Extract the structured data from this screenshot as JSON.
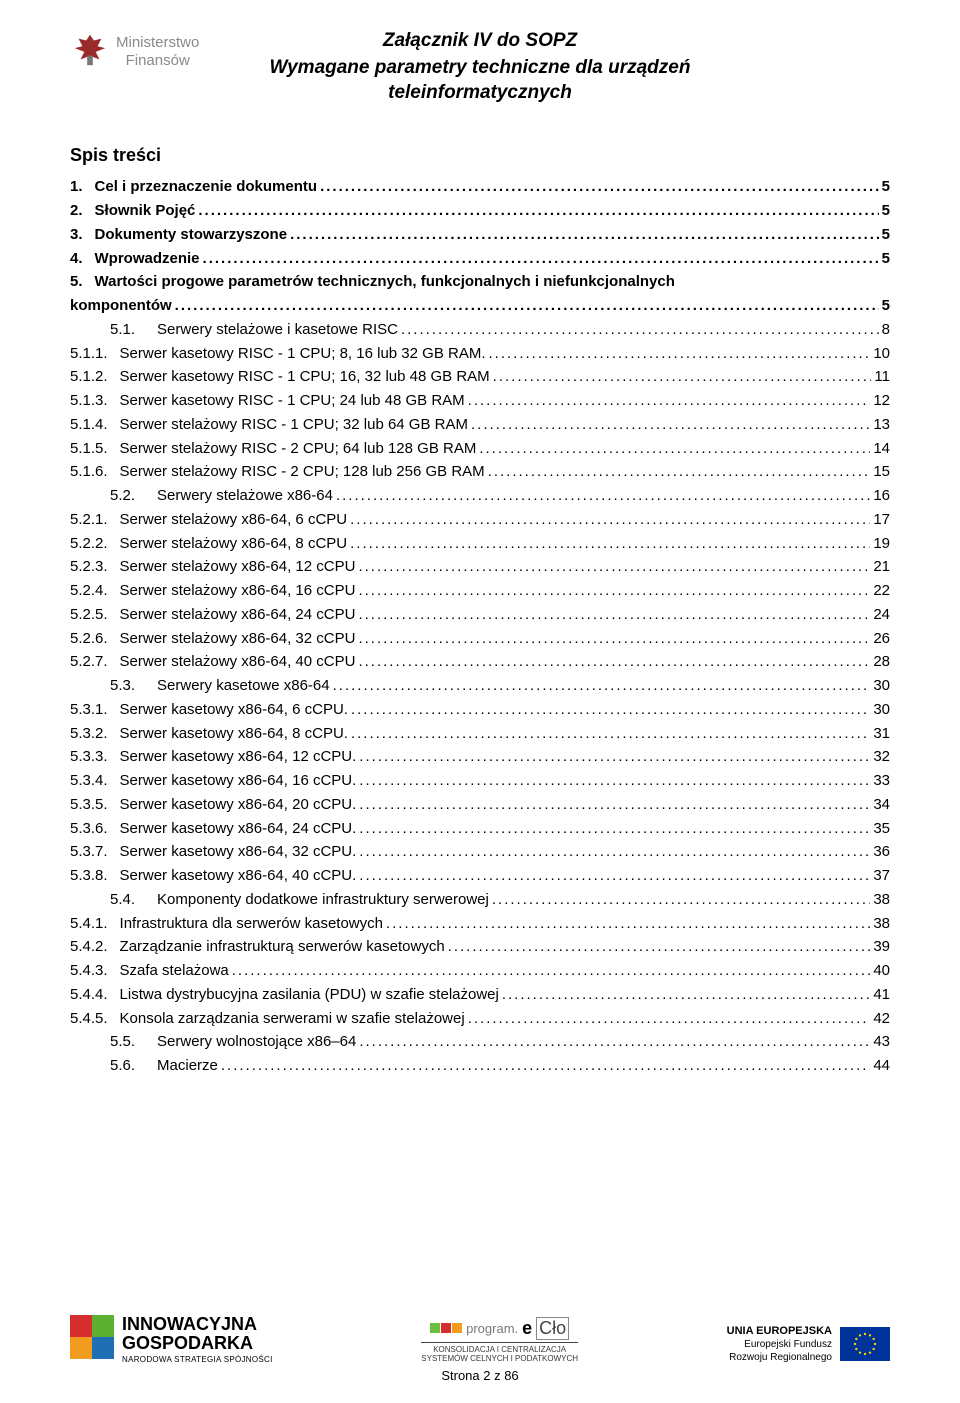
{
  "header": {
    "logo_line1": "Ministerstwo",
    "logo_line2": "Finansów",
    "title_main": "Załącznik IV do SOPZ",
    "title_sub": "Wymagane parametry techniczne dla urządzeń teleinformatycznych"
  },
  "toc_heading": "Spis treści",
  "toc": [
    {
      "lvl": "l1",
      "num": "1.",
      "label": "Cel i przeznaczenie dokumentu",
      "page": "5"
    },
    {
      "lvl": "l1",
      "num": "2.",
      "label": "Słownik Pojęć",
      "page": "5"
    },
    {
      "lvl": "l1",
      "num": "3.",
      "label": "Dokumenty stowarzyszone",
      "page": "5"
    },
    {
      "lvl": "l1",
      "num": "4.",
      "label": "Wprowadzenie",
      "page": "5"
    },
    {
      "lvl": "l1",
      "num": "5.",
      "label": "Wartości progowe parametrów technicznych, funkcjonalnych i niefunkcjonalnych",
      "page": ""
    },
    {
      "lvl": "l1",
      "num": "",
      "label": "komponentów",
      "page": "5",
      "cont": true
    },
    {
      "lvl": "l2",
      "indent": true,
      "num": "5.1.",
      "label": "Serwery stelażowe i kasetowe RISC",
      "page": "8"
    },
    {
      "lvl": "l3",
      "num": "5.1.1.",
      "label": "Serwer kasetowy RISC - 1 CPU; 8, 16 lub 32 GB RAM.",
      "page": "10"
    },
    {
      "lvl": "l3",
      "num": "5.1.2.",
      "label": "Serwer kasetowy RISC - 1 CPU; 16, 32 lub 48 GB RAM",
      "page": "11"
    },
    {
      "lvl": "l3",
      "num": "5.1.3.",
      "label": "Serwer kasetowy RISC - 1 CPU; 24 lub 48 GB RAM",
      "page": "12"
    },
    {
      "lvl": "l3",
      "num": "5.1.4.",
      "label": "Serwer stelażowy RISC - 1 CPU; 32 lub 64 GB RAM",
      "page": "13"
    },
    {
      "lvl": "l3",
      "num": "5.1.5.",
      "label": "Serwer stelażowy RISC - 2 CPU; 64 lub 128 GB RAM",
      "page": "14"
    },
    {
      "lvl": "l3",
      "num": "5.1.6.",
      "label": "Serwer stelażowy RISC - 2 CPU; 128 lub 256 GB RAM",
      "page": "15"
    },
    {
      "lvl": "l2",
      "indent": true,
      "num": "5.2.",
      "label": "Serwery stelażowe x86-64",
      "page": "16"
    },
    {
      "lvl": "l3",
      "num": "5.2.1.",
      "label": "Serwer stelażowy x86-64, 6 cCPU",
      "page": "17"
    },
    {
      "lvl": "l3",
      "num": "5.2.2.",
      "label": "Serwer stelażowy x86-64, 8 cCPU",
      "page": "19"
    },
    {
      "lvl": "l3",
      "num": "5.2.3.",
      "label": "Serwer stelażowy x86-64, 12 cCPU",
      "page": "21"
    },
    {
      "lvl": "l3",
      "num": "5.2.4.",
      "label": "Serwer stelażowy x86-64, 16 cCPU",
      "page": "22"
    },
    {
      "lvl": "l3",
      "num": "5.2.5.",
      "label": "Serwer stelażowy x86-64, 24 cCPU",
      "page": "24"
    },
    {
      "lvl": "l3",
      "num": "5.2.6.",
      "label": "Serwer stelażowy x86-64, 32 cCPU",
      "page": "26"
    },
    {
      "lvl": "l3",
      "num": "5.2.7.",
      "label": "Serwer stelażowy x86-64, 40 cCPU",
      "page": "28"
    },
    {
      "lvl": "l2",
      "indent": true,
      "num": "5.3.",
      "label": "Serwery kasetowe x86-64",
      "page": "30"
    },
    {
      "lvl": "l3",
      "num": "5.3.1.",
      "label": "Serwer kasetowy x86-64, 6 cCPU.",
      "page": "30"
    },
    {
      "lvl": "l3",
      "num": "5.3.2.",
      "label": "Serwer kasetowy x86-64, 8 cCPU.",
      "page": "31"
    },
    {
      "lvl": "l3",
      "num": "5.3.3.",
      "label": "Serwer kasetowy x86-64, 12 cCPU.",
      "page": "32"
    },
    {
      "lvl": "l3",
      "num": "5.3.4.",
      "label": "Serwer kasetowy x86-64, 16 cCPU.",
      "page": "33"
    },
    {
      "lvl": "l3",
      "num": "5.3.5.",
      "label": "Serwer kasetowy x86-64, 20 cCPU.",
      "page": "34"
    },
    {
      "lvl": "l3",
      "num": "5.3.6.",
      "label": "Serwer kasetowy x86-64, 24 cCPU.",
      "page": "35"
    },
    {
      "lvl": "l3",
      "num": "5.3.7.",
      "label": "Serwer kasetowy x86-64, 32 cCPU.",
      "page": "36"
    },
    {
      "lvl": "l3",
      "num": "5.3.8.",
      "label": "Serwer kasetowy x86-64, 40 cCPU.",
      "page": "37"
    },
    {
      "lvl": "l2",
      "indent": true,
      "num": "5.4.",
      "label": "Komponenty dodatkowe infrastruktury serwerowej",
      "page": "38"
    },
    {
      "lvl": "l3",
      "num": "5.4.1.",
      "label": "Infrastruktura dla serwerów kasetowych",
      "page": "38"
    },
    {
      "lvl": "l3",
      "num": "5.4.2.",
      "label": "Zarządzanie infrastrukturą serwerów kasetowych",
      "page": "39"
    },
    {
      "lvl": "l3",
      "num": "5.4.3.",
      "label": "Szafa stelażowa",
      "page": "40"
    },
    {
      "lvl": "l3",
      "num": "5.4.4.",
      "label": "Listwa dystrybucyjna zasilania (PDU) w szafie stelażowej",
      "page": "41"
    },
    {
      "lvl": "l3",
      "num": "5.4.5.",
      "label": "Konsola zarządzania serwerami w szafie stelażowej",
      "page": "42"
    },
    {
      "lvl": "l2",
      "indent": true,
      "num": "5.5.",
      "label": "Serwery wolnostojące x86–64",
      "page": "43"
    },
    {
      "lvl": "l2",
      "indent": true,
      "num": "5.6.",
      "label": "Macierze",
      "page": "44"
    }
  ],
  "footer": {
    "ig_colors": [
      "#d62e2e",
      "#5cb031",
      "#f29c1f",
      "#1f6fb2"
    ],
    "ig_line1": "INNOWACYJNA",
    "ig_line2": "GOSPODARKA",
    "ig_sub": "NARODOWA STRATEGIA SPÓJNOŚCI",
    "eclo_program": "program.",
    "eclo_e": "e",
    "eclo_clo": "Cło",
    "eclo_sq_colors": [
      "#6fbf3f",
      "#d62e2e",
      "#f29c1f"
    ],
    "kons_l1": "KONSOLIDACJA I CENTRALIZACJA",
    "kons_l2": "SYSTEMÓW CELNYCH I PODATKOWYCH",
    "ue_title": "UNIA EUROPEJSKA",
    "ue_l1": "Europejski Fundusz",
    "ue_l2": "Rozwoju Regionalnego",
    "ue_flag_bg": "#003399",
    "ue_star": "#ffcc00",
    "page_num": "Strona 2 z 86"
  }
}
